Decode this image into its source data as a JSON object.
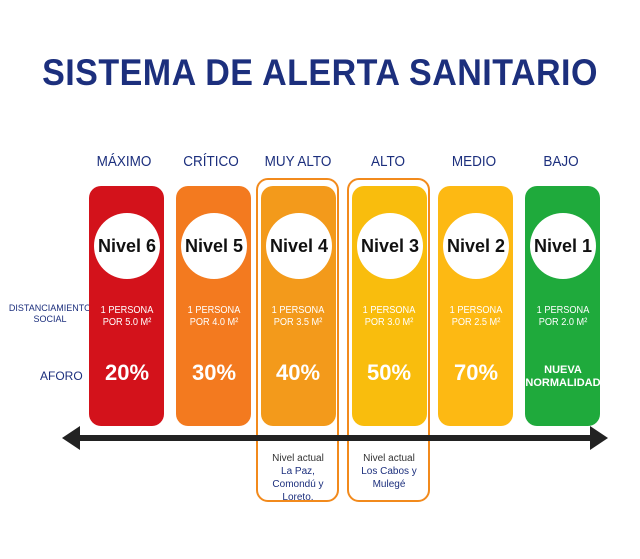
{
  "title": "SISTEMA DE ALERTA SANITARIO",
  "row_labels": {
    "distanciamiento": "DISTANCIAMIENTO SOCIAL",
    "aforo": "AFORO"
  },
  "levels": [
    {
      "name": "MÁXIMO",
      "level": "Nivel 6",
      "dist": "1 PERSONA POR 5.0 M²",
      "aforo": "20%",
      "color": "#d3121b"
    },
    {
      "name": "CRÍTICO",
      "level": "Nivel 5",
      "dist": "1 PERSONA POR 4.0 M²",
      "aforo": "30%",
      "color": "#f37a1f"
    },
    {
      "name": "MUY ALTO",
      "level": "Nivel 4",
      "dist": "1 PERSONA POR 3.5 M²",
      "aforo": "40%",
      "color": "#f39a1b"
    },
    {
      "name": "ALTO",
      "level": "Nivel 3",
      "dist": "1 PERSONA POR 3.0 M²",
      "aforo": "50%",
      "color": "#f9bd0d"
    },
    {
      "name": "MEDIO",
      "level": "Nivel 2",
      "dist": "1 PERSONA POR 2.5 M²",
      "aforo": "70%",
      "color": "#fdb913"
    },
    {
      "name": "BAJO",
      "level": "Nivel 1",
      "dist": "1 PERSONA POR 2.0 M²",
      "aforo": "NUEVA NORMALIDAD",
      "color": "#1faa3c"
    }
  ],
  "current": [
    {
      "label": "Nivel actual",
      "places": "La Paz, Comondú y Loreto."
    },
    {
      "label": "Nivel actual",
      "places": "Los Cabos y Mulegé"
    }
  ],
  "highlight_color": "#f28a1c",
  "title_color": "#1c2f7d"
}
